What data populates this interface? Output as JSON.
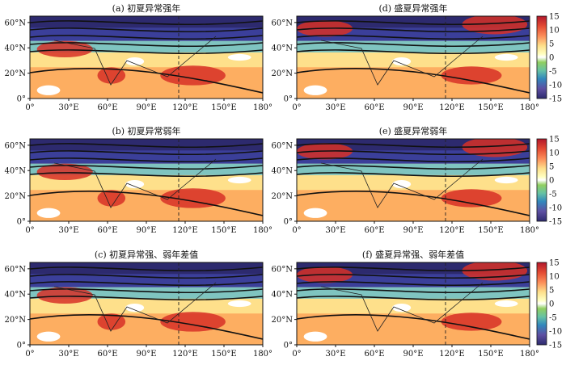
{
  "panels": [
    {
      "id": "a",
      "title": "(a) 初夏异常强年"
    },
    {
      "id": "d",
      "title": "(d) 盛夏异常强年"
    },
    {
      "id": "b",
      "title": "(b) 初夏异常弱年"
    },
    {
      "id": "e",
      "title": "(e) 盛夏异常弱年"
    },
    {
      "id": "c",
      "title": "(c) 初夏异常强、弱年差值"
    },
    {
      "id": "f",
      "title": "(f) 盛夏异常强、弱年差值"
    }
  ],
  "axes": {
    "lon_labels": [
      "0°",
      "30°E",
      "60°E",
      "90°E",
      "120°E",
      "150°E",
      "180°"
    ],
    "lat_labels": [
      "0°",
      "20°N",
      "40°N",
      "60°N"
    ]
  },
  "colorbar": {
    "ticks": [
      "15",
      "10",
      "5",
      "0",
      "-5",
      "-10",
      "-15"
    ],
    "colors": [
      "#b2182b",
      "#e34a33",
      "#fc8d59",
      "#fee08b",
      "#ffffbf",
      "#ffffff",
      "#91cf60",
      "#66c2a5",
      "#3288bd",
      "#5e4fa2",
      "#2d2a6e"
    ]
  }
}
